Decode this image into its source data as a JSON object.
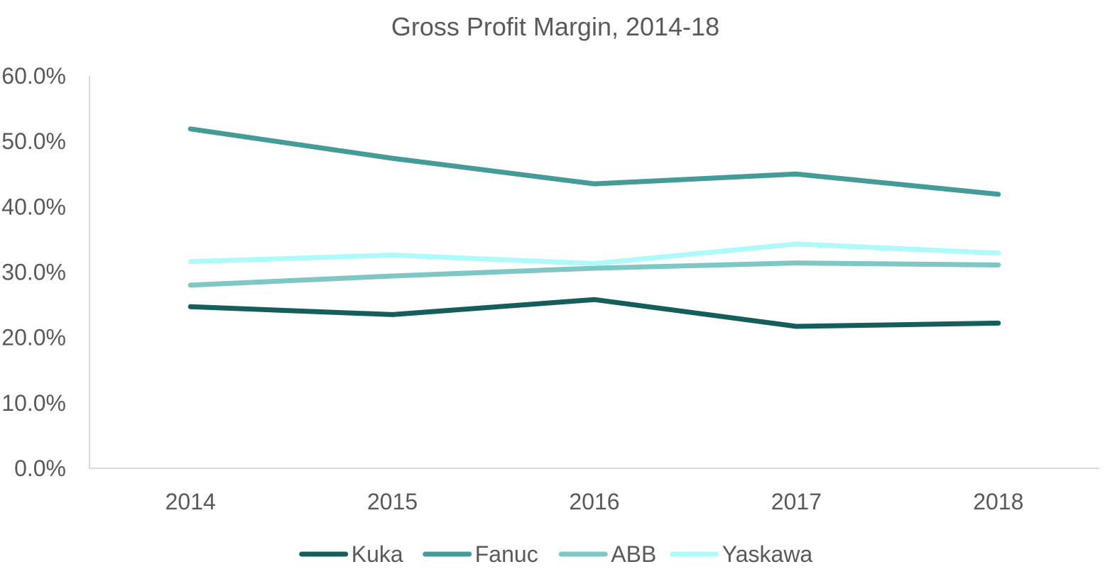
{
  "chart_data": {
    "type": "line",
    "title": "Gross Profit Margin, 2014-18",
    "xlabel": "",
    "ylabel": "",
    "categories": [
      "2014",
      "2015",
      "2016",
      "2017",
      "2018"
    ],
    "ylim": [
      0,
      60
    ],
    "y_ticks": [
      0,
      10,
      20,
      30,
      40,
      50,
      60
    ],
    "y_tick_labels": [
      "0.0%",
      "10.0%",
      "20.0%",
      "30.0%",
      "40.0%",
      "50.0%",
      "60.0%"
    ],
    "grid": false,
    "legend_position": "bottom",
    "series": [
      {
        "name": "Kuka",
        "color": "#165E5B",
        "values": [
          24.7,
          23.5,
          25.8,
          21.7,
          22.2
        ]
      },
      {
        "name": "Fanuc",
        "color": "#459B98",
        "values": [
          51.9,
          47.4,
          43.5,
          45.0,
          41.9
        ]
      },
      {
        "name": "ABB",
        "color": "#7FC7C4",
        "values": [
          28.0,
          29.4,
          30.6,
          31.4,
          31.1
        ]
      },
      {
        "name": "Yaskawa",
        "color": "#AEFAFB",
        "values": [
          31.6,
          32.6,
          31.3,
          34.3,
          32.9
        ]
      }
    ]
  }
}
